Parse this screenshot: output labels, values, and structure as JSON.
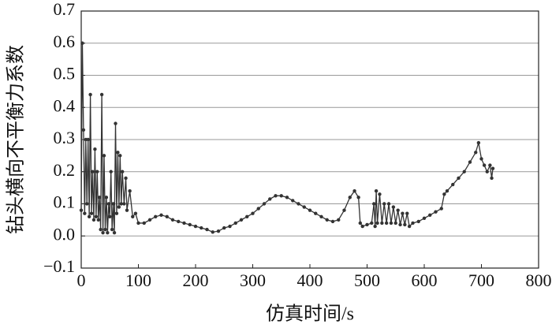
{
  "chart_data": {
    "type": "line",
    "xlabel": "仿真时间/s",
    "ylabel": "钻头横向不平衡力系数",
    "x": [
      0,
      2,
      4,
      6,
      8,
      10,
      12,
      14,
      16,
      18,
      20,
      22,
      24,
      26,
      28,
      30,
      32,
      34,
      36,
      38,
      40,
      42,
      44,
      46,
      48,
      50,
      52,
      54,
      56,
      58,
      60,
      62,
      64,
      66,
      68,
      70,
      72,
      75,
      78,
      80,
      85,
      90,
      95,
      100,
      110,
      120,
      130,
      140,
      150,
      160,
      170,
      180,
      190,
      200,
      210,
      220,
      230,
      240,
      250,
      260,
      270,
      280,
      290,
      300,
      310,
      320,
      330,
      340,
      350,
      360,
      370,
      380,
      390,
      400,
      410,
      420,
      430,
      440,
      450,
      460,
      470,
      478,
      485,
      488,
      492,
      500,
      508,
      512,
      514,
      516,
      518,
      522,
      526,
      530,
      534,
      538,
      542,
      546,
      550,
      554,
      558,
      562,
      566,
      570,
      574,
      580,
      590,
      600,
      610,
      620,
      630,
      635,
      640,
      650,
      660,
      670,
      680,
      690,
      695,
      700,
      705,
      710,
      715,
      718,
      720
    ],
    "values": [
      0.08,
      0.6,
      0.33,
      0.07,
      0.3,
      0.1,
      0.3,
      0.06,
      0.44,
      0.07,
      0.2,
      0.05,
      0.27,
      0.06,
      0.2,
      0.05,
      0.12,
      0.02,
      0.44,
      0.01,
      0.25,
      0.02,
      0.12,
      0.01,
      0.1,
      0.06,
      0.2,
      0.02,
      0.1,
      0.01,
      0.35,
      0.07,
      0.26,
      0.09,
      0.25,
      0.1,
      0.2,
      0.1,
      0.18,
      0.08,
      0.14,
      0.06,
      0.07,
      0.04,
      0.04,
      0.05,
      0.06,
      0.065,
      0.06,
      0.05,
      0.045,
      0.04,
      0.035,
      0.03,
      0.025,
      0.02,
      0.012,
      0.015,
      0.025,
      0.03,
      0.04,
      0.05,
      0.06,
      0.07,
      0.085,
      0.1,
      0.115,
      0.125,
      0.125,
      0.12,
      0.11,
      0.1,
      0.09,
      0.08,
      0.07,
      0.06,
      0.05,
      0.045,
      0.05,
      0.08,
      0.12,
      0.14,
      0.12,
      0.04,
      0.03,
      0.035,
      0.04,
      0.1,
      0.03,
      0.14,
      0.04,
      0.13,
      0.04,
      0.1,
      0.04,
      0.1,
      0.04,
      0.09,
      0.04,
      0.08,
      0.035,
      0.07,
      0.035,
      0.07,
      0.03,
      0.04,
      0.045,
      0.055,
      0.065,
      0.075,
      0.085,
      0.13,
      0.14,
      0.16,
      0.18,
      0.2,
      0.23,
      0.26,
      0.29,
      0.24,
      0.22,
      0.2,
      0.22,
      0.18,
      0.21
    ],
    "color": "#333333",
    "xlim": [
      0,
      800
    ],
    "xticks": [
      0,
      100,
      200,
      300,
      400,
      500,
      600,
      700,
      800
    ],
    "ylim": [
      -0.1,
      0.7
    ],
    "yticks": [
      {
        "value": -0.1,
        "label": "−0.1"
      },
      {
        "value": 0,
        "label": "0.0"
      },
      0.1,
      0.2,
      0.3,
      0.4,
      0.5,
      0.6,
      0.7
    ],
    "grid": true
  }
}
